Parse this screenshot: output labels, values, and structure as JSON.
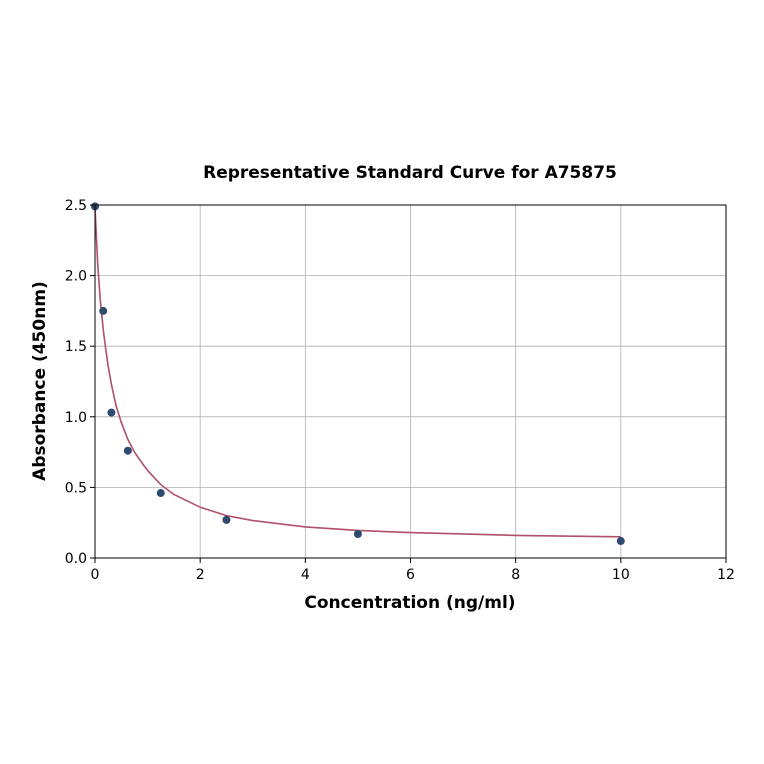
{
  "chart_data": {
    "type": "scatter",
    "title": "Representative Standard Curve for A75875",
    "xlabel": "Concentration (ng/ml)",
    "ylabel": "Absorbance (450nm)",
    "xlim": [
      0,
      12
    ],
    "ylim": [
      0,
      2.5
    ],
    "x_ticks": [
      0,
      2,
      4,
      6,
      8,
      10,
      12
    ],
    "y_ticks": [
      0.0,
      0.5,
      1.0,
      1.5,
      2.0,
      2.5
    ],
    "x_tick_labels": [
      "0",
      "2",
      "4",
      "6",
      "8",
      "10",
      "12"
    ],
    "y_tick_labels": [
      "0.0",
      "0.5",
      "1.0",
      "1.5",
      "2.0",
      "2.5"
    ],
    "grid": true,
    "series": [
      {
        "kind": "points",
        "color": "#2e4a6e",
        "x": [
          0,
          0.156,
          0.312,
          0.625,
          1.25,
          2.5,
          5,
          10
        ],
        "y": [
          2.49,
          1.75,
          1.03,
          0.76,
          0.46,
          0.27,
          0.17,
          0.12
        ]
      },
      {
        "kind": "fit-curve",
        "color": "#b0506a",
        "x": [
          0,
          0.05,
          0.1,
          0.156,
          0.2,
          0.25,
          0.312,
          0.4,
          0.5,
          0.625,
          0.75,
          0.9,
          1.0,
          1.25,
          1.5,
          2.0,
          2.5,
          3.0,
          4.0,
          5.0,
          6.0,
          8.0,
          10.0
        ],
        "y": [
          2.49,
          2.09,
          1.83,
          1.62,
          1.49,
          1.36,
          1.23,
          1.08,
          0.96,
          0.84,
          0.75,
          0.67,
          0.62,
          0.52,
          0.45,
          0.36,
          0.3,
          0.265,
          0.22,
          0.195,
          0.18,
          0.16,
          0.15
        ]
      }
    ]
  }
}
